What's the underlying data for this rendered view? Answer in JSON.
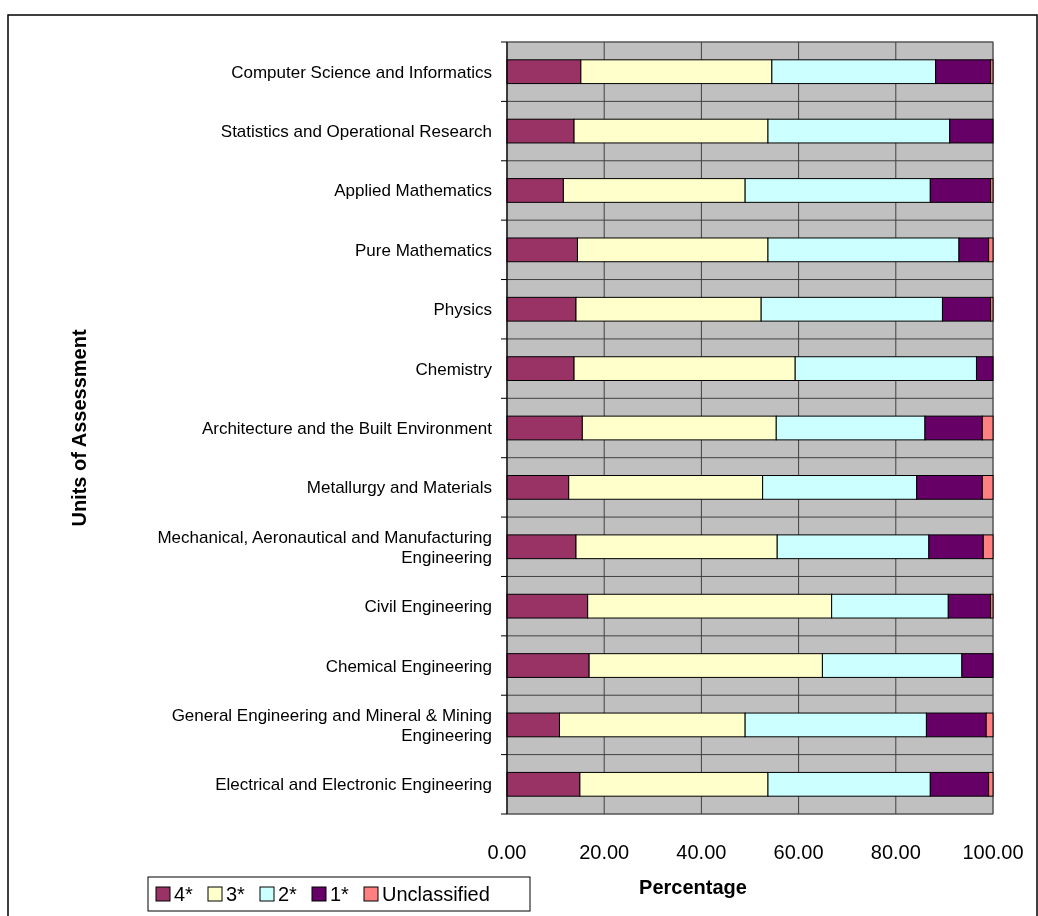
{
  "chart_data": {
    "type": "bar",
    "orientation": "horizontal",
    "stacked": true,
    "xlabel": "Percentage",
    "ylabel": "Units of Assessment",
    "categories": [
      "Computer Science and Informatics",
      "Statistics and Operational Research",
      "Applied Mathematics",
      "Pure Mathematics",
      "Physics",
      "Chemistry",
      "Architecture and the Built Environment",
      "Metallurgy and Materials",
      "Mechanical, Aeronautical and Manufacturing Engineering",
      "Civil Engineering",
      "Chemical Engineering",
      "General Engineering and Mineral & Mining Engineering",
      "Electrical and Electronic Engineering"
    ],
    "series": [
      {
        "name": "4*",
        "color": "#993366",
        "values": [
          15.2,
          13.8,
          11.6,
          14.5,
          14.2,
          13.8,
          15.5,
          12.7,
          14.2,
          16.6,
          16.9,
          10.8,
          15.0
        ]
      },
      {
        "name": "3*",
        "color": "#ffffcc",
        "values": [
          39.3,
          39.9,
          37.4,
          39.2,
          38.1,
          45.5,
          39.9,
          39.9,
          41.4,
          50.2,
          48.0,
          38.2,
          38.7
        ]
      },
      {
        "name": "2*",
        "color": "#ccffff",
        "values": [
          33.7,
          37.4,
          38.1,
          39.3,
          37.3,
          37.3,
          30.6,
          31.7,
          31.2,
          24.0,
          28.7,
          37.3,
          33.4
        ]
      },
      {
        "name": "1*",
        "color": "#660066",
        "values": [
          11.3,
          8.9,
          12.4,
          6.1,
          9.9,
          3.4,
          11.8,
          13.5,
          11.2,
          8.7,
          6.4,
          12.3,
          12.0
        ]
      },
      {
        "name": "Unclassified",
        "color": "#ff8080",
        "values": [
          0.5,
          0,
          0.5,
          0.9,
          0.5,
          0,
          2.2,
          2.2,
          2.0,
          0.5,
          0,
          1.4,
          0.9
        ]
      }
    ],
    "xlim": [
      0,
      100
    ],
    "xticks": [
      {
        "value": 0,
        "label": "0.00"
      },
      {
        "value": 20,
        "label": "20.00"
      },
      {
        "value": 40,
        "label": "40.00"
      },
      {
        "value": 60,
        "label": "60.00"
      },
      {
        "value": 80,
        "label": "80.00"
      },
      {
        "value": 100,
        "label": "100.00"
      }
    ],
    "grid": true,
    "legend": "bottom left"
  }
}
